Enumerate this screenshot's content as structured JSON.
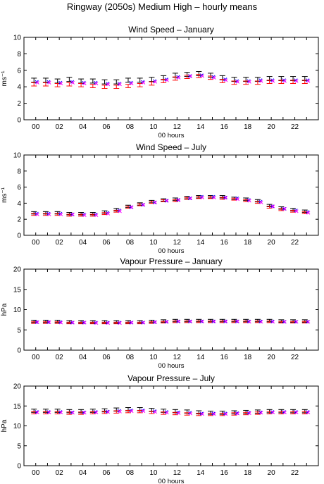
{
  "page": {
    "title": "Ringway (2050s) Medium High – hourly means"
  },
  "colors": {
    "black": "#000000",
    "red": "#ff0000",
    "blue": "#0000ff",
    "magenta": "#ff00ff"
  },
  "chart_data": [
    {
      "type": "scatter",
      "title": "Wind Speed – January",
      "xlabel": "00 hours",
      "ylabel": "ms⁻¹",
      "ylim": [
        0,
        10
      ],
      "yticks": [
        0,
        2,
        4,
        6,
        8,
        10
      ],
      "xlim": [
        -1,
        24
      ],
      "xticks": [
        "00",
        "02",
        "04",
        "06",
        "08",
        "10",
        "12",
        "14",
        "16",
        "18",
        "20",
        "22"
      ],
      "x": [
        0,
        1,
        2,
        3,
        4,
        5,
        6,
        7,
        8,
        9,
        10,
        11,
        12,
        13,
        14,
        15,
        16,
        17,
        18,
        19,
        20,
        21,
        22,
        23
      ],
      "series": [
        {
          "color": "black",
          "marker": "bar",
          "values": [
            4.8,
            4.8,
            4.7,
            4.9,
            4.7,
            4.7,
            4.6,
            4.6,
            4.8,
            4.8,
            4.9,
            5.1,
            5.4,
            5.5,
            5.6,
            5.4,
            5.1,
            4.9,
            4.9,
            4.9,
            5.0,
            5.0,
            5.0,
            5.0
          ],
          "err": 0.25
        },
        {
          "color": "red",
          "marker": "bar",
          "values": [
            4.3,
            4.3,
            4.2,
            4.3,
            4.2,
            4.1,
            4.0,
            4.0,
            4.1,
            4.2,
            4.4,
            4.7,
            5.0,
            5.2,
            5.3,
            5.1,
            4.7,
            4.5,
            4.5,
            4.5,
            4.6,
            4.6,
            4.6,
            4.6
          ],
          "err": 0.2
        },
        {
          "color": "blue",
          "marker": "x",
          "values": [
            4.6,
            4.6,
            4.5,
            4.6,
            4.5,
            4.5,
            4.4,
            4.4,
            4.5,
            4.6,
            4.7,
            4.9,
            5.2,
            5.3,
            5.4,
            5.2,
            4.9,
            4.7,
            4.7,
            4.8,
            4.8,
            4.8,
            4.8,
            4.8
          ]
        },
        {
          "color": "magenta",
          "marker": "x",
          "values": [
            4.5,
            4.5,
            4.4,
            4.5,
            4.4,
            4.4,
            4.3,
            4.3,
            4.4,
            4.5,
            4.6,
            4.8,
            5.1,
            5.3,
            5.3,
            5.1,
            4.8,
            4.6,
            4.6,
            4.7,
            4.7,
            4.7,
            4.7,
            4.7
          ]
        }
      ]
    },
    {
      "type": "scatter",
      "title": "Wind Speed – July",
      "xlabel": "00 hours",
      "ylabel": "ms⁻¹",
      "ylim": [
        0,
        10
      ],
      "yticks": [
        0,
        2,
        4,
        6,
        8,
        10
      ],
      "xlim": [
        -1,
        24
      ],
      "xticks": [
        "00",
        "02",
        "04",
        "06",
        "08",
        "10",
        "12",
        "14",
        "16",
        "18",
        "20",
        "22"
      ],
      "x": [
        0,
        1,
        2,
        3,
        4,
        5,
        6,
        7,
        8,
        9,
        10,
        11,
        12,
        13,
        14,
        15,
        16,
        17,
        18,
        19,
        20,
        21,
        22,
        23
      ],
      "series": [
        {
          "color": "black",
          "marker": "bar",
          "values": [
            2.8,
            2.8,
            2.8,
            2.7,
            2.7,
            2.7,
            2.9,
            3.2,
            3.6,
            3.9,
            4.2,
            4.4,
            4.5,
            4.7,
            4.8,
            4.8,
            4.8,
            4.6,
            4.5,
            4.3,
            3.7,
            3.4,
            3.2,
            3.0
          ],
          "err": 0.15
        },
        {
          "color": "red",
          "marker": "bar",
          "values": [
            2.6,
            2.6,
            2.6,
            2.5,
            2.5,
            2.5,
            2.7,
            3.0,
            3.5,
            3.8,
            4.1,
            4.3,
            4.3,
            4.6,
            4.7,
            4.7,
            4.6,
            4.5,
            4.3,
            4.1,
            3.5,
            3.2,
            3.0,
            2.8
          ],
          "err": 0.12
        },
        {
          "color": "blue",
          "marker": "x",
          "values": [
            2.7,
            2.7,
            2.7,
            2.6,
            2.6,
            2.6,
            2.8,
            3.1,
            3.5,
            3.8,
            4.1,
            4.3,
            4.4,
            4.6,
            4.8,
            4.8,
            4.7,
            4.6,
            4.4,
            4.2,
            3.6,
            3.3,
            3.1,
            2.9
          ]
        },
        {
          "color": "magenta",
          "marker": "x",
          "values": [
            2.6,
            2.6,
            2.6,
            2.6,
            2.5,
            2.5,
            2.7,
            3.0,
            3.5,
            3.8,
            4.1,
            4.3,
            4.4,
            4.6,
            4.7,
            4.7,
            4.7,
            4.5,
            4.3,
            4.1,
            3.6,
            3.3,
            3.0,
            2.8
          ]
        }
      ]
    },
    {
      "type": "scatter",
      "title": "Vapour Pressure – January",
      "xlabel": "00 hours",
      "ylabel": "hPa",
      "ylim": [
        0,
        20
      ],
      "yticks": [
        0,
        5,
        10,
        15,
        20
      ],
      "xlim": [
        -1,
        24
      ],
      "xticks": [
        "00",
        "02",
        "04",
        "06",
        "08",
        "10",
        "12",
        "14",
        "16",
        "18",
        "20",
        "22"
      ],
      "x": [
        0,
        1,
        2,
        3,
        4,
        5,
        6,
        7,
        8,
        9,
        10,
        11,
        12,
        13,
        14,
        15,
        16,
        17,
        18,
        19,
        20,
        21,
        22,
        23
      ],
      "series": [
        {
          "color": "black",
          "marker": "bar",
          "values": [
            7.1,
            7.1,
            7.1,
            7.0,
            7.0,
            7.0,
            7.0,
            7.0,
            7.0,
            7.0,
            7.1,
            7.2,
            7.3,
            7.3,
            7.3,
            7.3,
            7.3,
            7.3,
            7.3,
            7.3,
            7.3,
            7.2,
            7.2,
            7.2
          ],
          "err": 0.3
        },
        {
          "color": "red",
          "marker": "bar",
          "values": [
            6.8,
            6.8,
            6.8,
            6.7,
            6.7,
            6.7,
            6.7,
            6.7,
            6.7,
            6.7,
            6.8,
            6.9,
            7.0,
            7.0,
            7.0,
            7.0,
            7.0,
            7.0,
            7.0,
            7.0,
            7.0,
            6.9,
            6.9,
            6.9
          ],
          "err": 0.2
        },
        {
          "color": "blue",
          "marker": "x",
          "values": [
            6.9,
            6.9,
            6.9,
            6.8,
            6.8,
            6.8,
            6.8,
            6.8,
            6.8,
            6.8,
            6.9,
            7.0,
            7.1,
            7.1,
            7.1,
            7.1,
            7.1,
            7.1,
            7.1,
            7.1,
            7.1,
            7.0,
            7.0,
            7.0
          ]
        },
        {
          "color": "magenta",
          "marker": "x",
          "values": [
            6.9,
            6.9,
            6.8,
            6.8,
            6.8,
            6.7,
            6.7,
            6.7,
            6.8,
            6.8,
            6.9,
            7.0,
            7.1,
            7.1,
            7.1,
            7.1,
            7.1,
            7.1,
            7.0,
            7.0,
            7.0,
            7.0,
            7.0,
            7.0
          ]
        }
      ]
    },
    {
      "type": "scatter",
      "title": "Vapour Pressure – July",
      "xlabel": "00 hours",
      "ylabel": "hPa",
      "ylim": [
        0,
        20
      ],
      "yticks": [
        0,
        5,
        10,
        15,
        20
      ],
      "xlim": [
        -1,
        24
      ],
      "xticks": [
        "00",
        "02",
        "04",
        "06",
        "08",
        "10",
        "12",
        "14",
        "16",
        "18",
        "20",
        "22"
      ],
      "x": [
        0,
        1,
        2,
        3,
        4,
        5,
        6,
        7,
        8,
        9,
        10,
        11,
        12,
        13,
        14,
        15,
        16,
        17,
        18,
        19,
        20,
        21,
        22,
        23
      ],
      "series": [
        {
          "color": "black",
          "marker": "bar",
          "values": [
            13.8,
            13.8,
            13.8,
            13.7,
            13.7,
            13.8,
            13.9,
            14.1,
            14.2,
            14.2,
            14.0,
            13.8,
            13.7,
            13.6,
            13.4,
            13.3,
            13.3,
            13.4,
            13.5,
            13.6,
            13.7,
            13.7,
            13.7,
            13.7
          ],
          "err": 0.4
        },
        {
          "color": "red",
          "marker": "bar",
          "values": [
            13.3,
            13.3,
            13.3,
            13.2,
            13.2,
            13.3,
            13.4,
            13.5,
            13.6,
            13.6,
            13.4,
            13.2,
            13.1,
            13.0,
            12.9,
            12.9,
            12.9,
            13.0,
            13.1,
            13.2,
            13.3,
            13.3,
            13.3,
            13.3
          ],
          "err": 0.3
        },
        {
          "color": "blue",
          "marker": "x",
          "values": [
            13.5,
            13.5,
            13.5,
            13.4,
            13.4,
            13.5,
            13.6,
            13.8,
            13.9,
            13.9,
            13.7,
            13.5,
            13.4,
            13.3,
            13.1,
            13.1,
            13.1,
            13.2,
            13.3,
            13.4,
            13.5,
            13.5,
            13.5,
            13.5
          ]
        },
        {
          "color": "magenta",
          "marker": "x",
          "values": [
            13.4,
            13.4,
            13.4,
            13.3,
            13.3,
            13.4,
            13.5,
            13.6,
            13.7,
            13.7,
            13.5,
            13.3,
            13.2,
            13.1,
            13.0,
            13.0,
            13.0,
            13.1,
            13.2,
            13.3,
            13.4,
            13.4,
            13.4,
            13.4
          ]
        }
      ]
    }
  ]
}
